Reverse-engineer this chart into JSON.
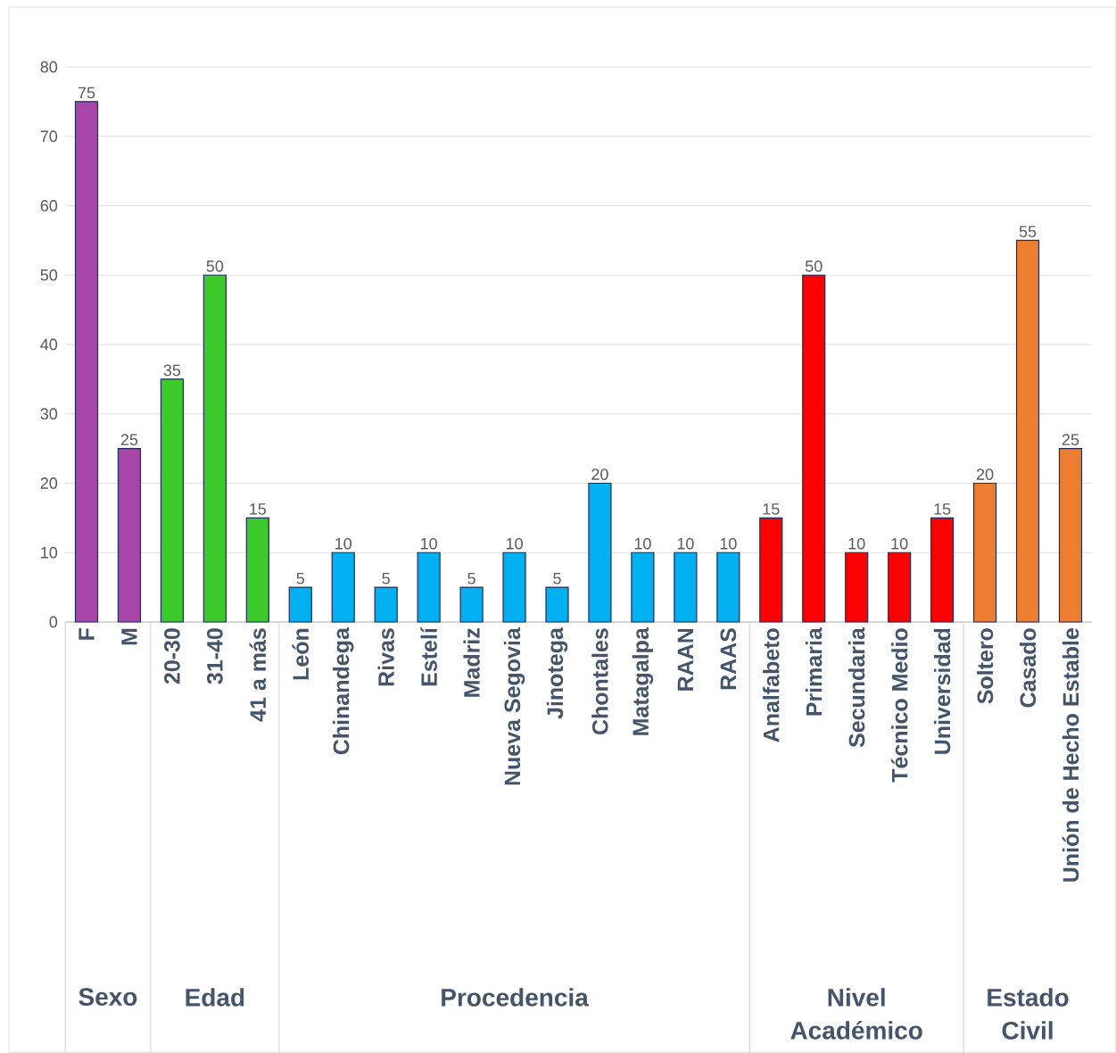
{
  "chart_data": {
    "type": "bar",
    "categories": [
      "F",
      "M",
      "20-30",
      "31-40",
      "41 a más",
      "León",
      "Chinandega",
      "Rivas",
      "Estelí",
      "Madriz",
      "Nueva Segovia",
      "Jinotega",
      "Chontales",
      "Matagalpa",
      "RAAN",
      "RAAS",
      "Analfabeto",
      "Primaria",
      "Secundaria",
      "Técnico Medio",
      "Universidad",
      "Soltero",
      "Casado",
      "Unión de Hecho Estable"
    ],
    "values": [
      75,
      25,
      35,
      50,
      15,
      5,
      10,
      5,
      10,
      5,
      10,
      5,
      20,
      10,
      10,
      10,
      15,
      50,
      10,
      10,
      15,
      20,
      55,
      25
    ],
    "colors": [
      "#a846a8",
      "#a846a8",
      "#3cc92a",
      "#3cc92a",
      "#3cc92a",
      "#00b0f0",
      "#00b0f0",
      "#00b0f0",
      "#00b0f0",
      "#00b0f0",
      "#00b0f0",
      "#00b0f0",
      "#00b0f0",
      "#00b0f0",
      "#00b0f0",
      "#00b0f0",
      "#ff0000",
      "#ff0000",
      "#ff0000",
      "#ff0000",
      "#ff0000",
      "#ed7d31",
      "#ed7d31",
      "#ed7d31"
    ],
    "ylim": [
      0,
      80
    ],
    "yticks": [
      0,
      10,
      20,
      30,
      40,
      50,
      60,
      70,
      80
    ],
    "grid": "y",
    "data_labels": true,
    "annotations": [
      "Sexo",
      "Edad",
      "Procedencia",
      "Nivel Académico",
      "Estado Civil"
    ]
  }
}
